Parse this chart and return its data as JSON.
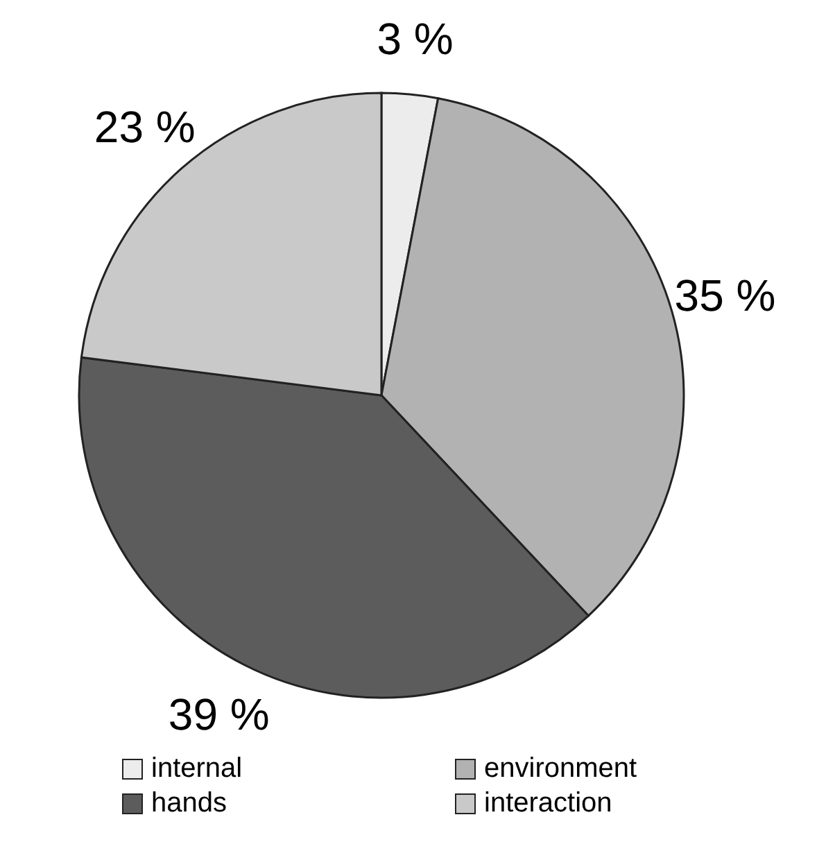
{
  "chart_data": {
    "type": "pie",
    "categories": [
      "internal",
      "environment",
      "hands",
      "interaction"
    ],
    "values": [
      3,
      35,
      39,
      23
    ],
    "colors": [
      "#ececec",
      "#b2b2b2",
      "#5c5c5c",
      "#c9c9c9"
    ],
    "value_labels": [
      "3 %",
      "35 %",
      "39 %",
      "23 %"
    ],
    "legend": "bottom"
  }
}
